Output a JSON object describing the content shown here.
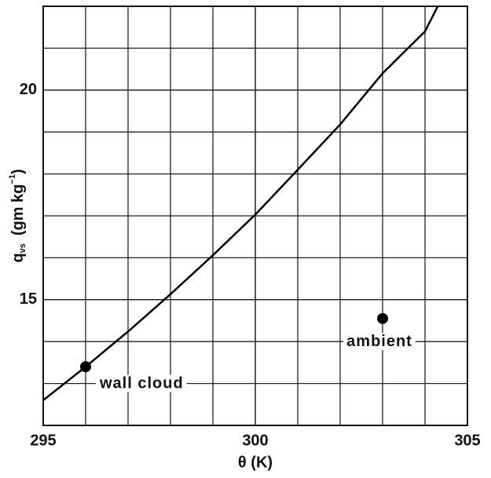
{
  "chart_data": {
    "type": "line",
    "xlabel": "θ (K)",
    "ylabel": {
      "main": "q",
      "sub": "vs",
      "rest": "(gm kg",
      "sup": "−1",
      "end": ")"
    },
    "xlim": [
      295,
      305
    ],
    "ylim": [
      12,
      22
    ],
    "xticks": [
      295,
      300,
      305
    ],
    "yticks": [
      15,
      20
    ],
    "xgrid": [
      296,
      297,
      298,
      299,
      300,
      301,
      302,
      303,
      304
    ],
    "ygrid": [
      13,
      14,
      15,
      16,
      17,
      18,
      19,
      20,
      21
    ],
    "grid": true,
    "series": [
      {
        "x": [
          295,
          296,
          297,
          298,
          299,
          300,
          301,
          302,
          303,
          304,
          304.3
        ],
        "values": [
          12.6,
          13.4,
          14.24,
          15.13,
          16.06,
          17.03,
          18.1,
          19.18,
          20.4,
          21.4,
          22
        ],
        "color": "#000000"
      }
    ],
    "points": [
      {
        "x": 296,
        "value": 13.4,
        "label": "wall cloud"
      },
      {
        "x": 303,
        "value": 14.55,
        "label": "ambient"
      }
    ]
  }
}
